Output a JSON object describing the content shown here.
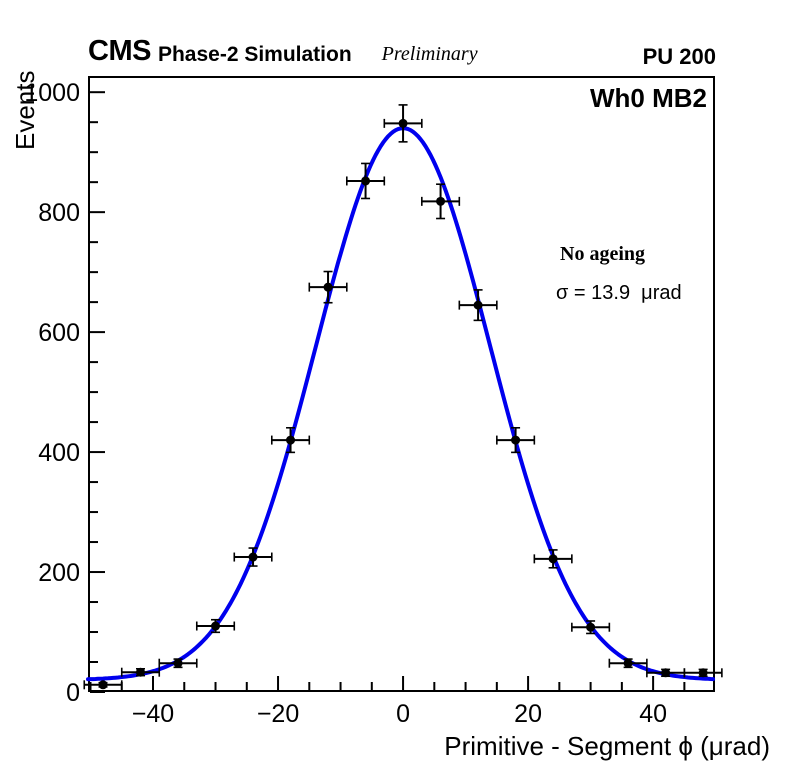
{
  "header": {
    "experiment": "CMS",
    "label": "Phase-2 Simulation",
    "sublabel": "Preliminary",
    "pileup": "PU 200"
  },
  "plot_labels": {
    "chamber": "Wh0 MB2",
    "annotation_line1": "No ageing",
    "annotation_line2": "σ = 13.9  μrad"
  },
  "chart_data": {
    "type": "scatter",
    "title": "",
    "xlabel": "Primitive - Segment ϕ (μrad)",
    "ylabel": "Events",
    "xlim": [
      -50.4,
      49.9
    ],
    "ylim": [
      0,
      1027
    ],
    "grid": false,
    "legend": "none",
    "x_major_ticks": [
      -40,
      -20,
      0,
      20,
      40
    ],
    "x_tick_labels": [
      "−40",
      "−20",
      "0",
      "20",
      "40"
    ],
    "x_minor_step": 5,
    "y_major_ticks": [
      0,
      200,
      400,
      600,
      800,
      1000
    ],
    "y_tick_labels": [
      "0",
      "200",
      "400",
      "600",
      "800",
      "1000"
    ],
    "y_minor_step": 50,
    "bin_half_width": 3,
    "marker_color": "#000000",
    "points": [
      {
        "x": -48,
        "y": 12,
        "yerr": 3.5
      },
      {
        "x": -42,
        "y": 33,
        "yerr": 5.7
      },
      {
        "x": -36,
        "y": 48,
        "yerr": 6.9
      },
      {
        "x": -30,
        "y": 110,
        "yerr": 10.5
      },
      {
        "x": -24,
        "y": 225,
        "yerr": 15.0
      },
      {
        "x": -18,
        "y": 420,
        "yerr": 20.5
      },
      {
        "x": -12,
        "y": 675,
        "yerr": 26.0
      },
      {
        "x": -6,
        "y": 852,
        "yerr": 29.2
      },
      {
        "x": 0,
        "y": 948,
        "yerr": 30.8
      },
      {
        "x": 6,
        "y": 818,
        "yerr": 28.6
      },
      {
        "x": 12,
        "y": 645,
        "yerr": 25.4
      },
      {
        "x": 18,
        "y": 420,
        "yerr": 20.5
      },
      {
        "x": 24,
        "y": 222,
        "yerr": 14.9
      },
      {
        "x": 30,
        "y": 108,
        "yerr": 10.4
      },
      {
        "x": 36,
        "y": 48,
        "yerr": 6.9
      },
      {
        "x": 42,
        "y": 32,
        "yerr": 5.7
      },
      {
        "x": 48,
        "y": 32,
        "yerr": 5.7
      }
    ],
    "fit": {
      "type": "gaussian_plus_constant",
      "amplitude": 920,
      "mean": 0,
      "sigma": 13.9,
      "constant": 20,
      "color": "#0000ee",
      "line_width": 4
    }
  }
}
